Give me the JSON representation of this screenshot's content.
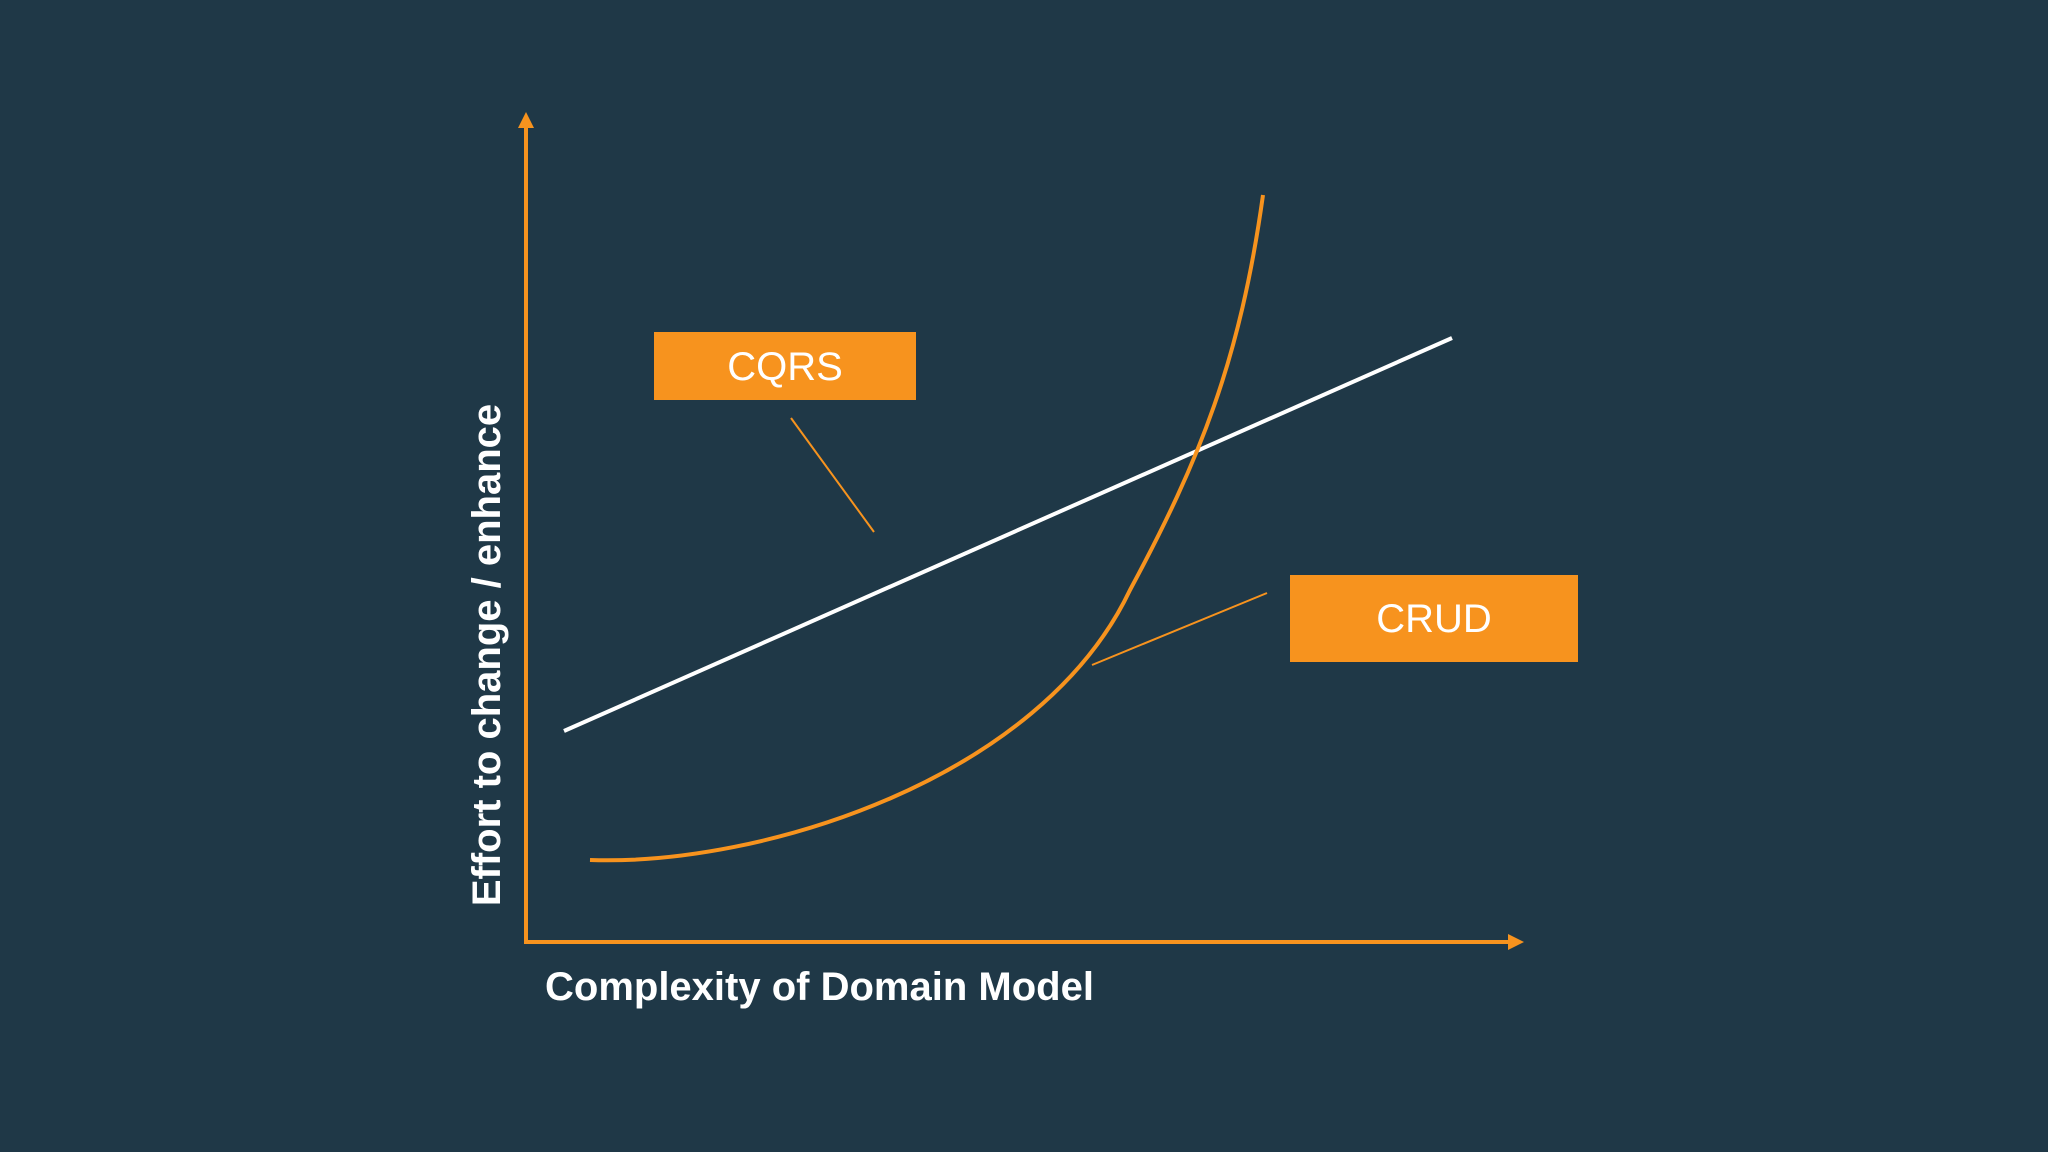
{
  "colors": {
    "background": "#1f3847",
    "axis": "#f7931e",
    "crud_series": "#f7931e",
    "cqrs_series": "#ffffff",
    "label_box": "#f7931e",
    "label_text": "#ffffff"
  },
  "axes": {
    "x_label": "Complexity of Domain Model",
    "y_label": "Effort to change / enhance"
  },
  "series": {
    "cqrs": {
      "label": "CQRS",
      "shape": "straight line",
      "color_name": "white"
    },
    "crud": {
      "label": "CRUD",
      "shape": "exponential curve",
      "color_name": "orange"
    }
  }
}
